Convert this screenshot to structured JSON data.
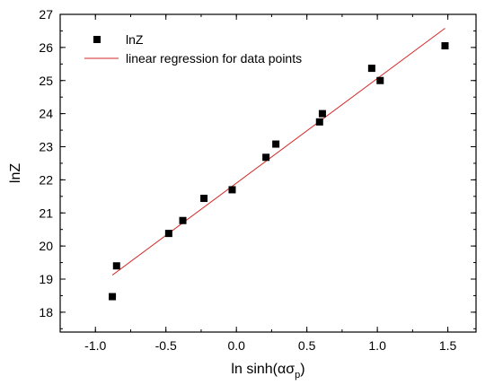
{
  "chart_data": {
    "type": "scatter",
    "xlabel": "ln sinh(ασ",
    "xlabel_sub": "p",
    "xlabel_close": ")",
    "ylabel": "lnZ",
    "xlim": [
      -1.25,
      1.7
    ],
    "ylim": [
      17.4,
      27.0
    ],
    "x_ticks": [
      -1.0,
      -0.5,
      0.0,
      0.5,
      1.0,
      1.5
    ],
    "x_tick_labels": [
      "-1.0",
      "-0.5",
      "0.0",
      "0.5",
      "1.0",
      "1.5"
    ],
    "y_ticks": [
      18,
      19,
      20,
      21,
      22,
      23,
      24,
      25,
      26,
      27
    ],
    "y_tick_labels": [
      "18",
      "19",
      "20",
      "21",
      "22",
      "23",
      "24",
      "25",
      "26",
      "27"
    ],
    "grid": false,
    "legend_position": "top-left",
    "series": [
      {
        "name": "lnZ",
        "kind": "scatter",
        "marker": "square",
        "color": "#000000",
        "x": [
          -0.88,
          -0.85,
          -0.48,
          -0.38,
          -0.23,
          -0.03,
          0.21,
          0.28,
          0.59,
          0.61,
          0.96,
          1.02,
          1.48
        ],
        "y": [
          18.47,
          19.4,
          20.38,
          20.77,
          21.44,
          21.7,
          22.68,
          23.08,
          23.75,
          24.0,
          25.37,
          25.0,
          26.05
        ]
      },
      {
        "name": "linear regression for data points",
        "kind": "line",
        "color": "#d62728",
        "x": [
          -0.88,
          1.48
        ],
        "y": [
          19.12,
          26.58
        ]
      }
    ]
  }
}
